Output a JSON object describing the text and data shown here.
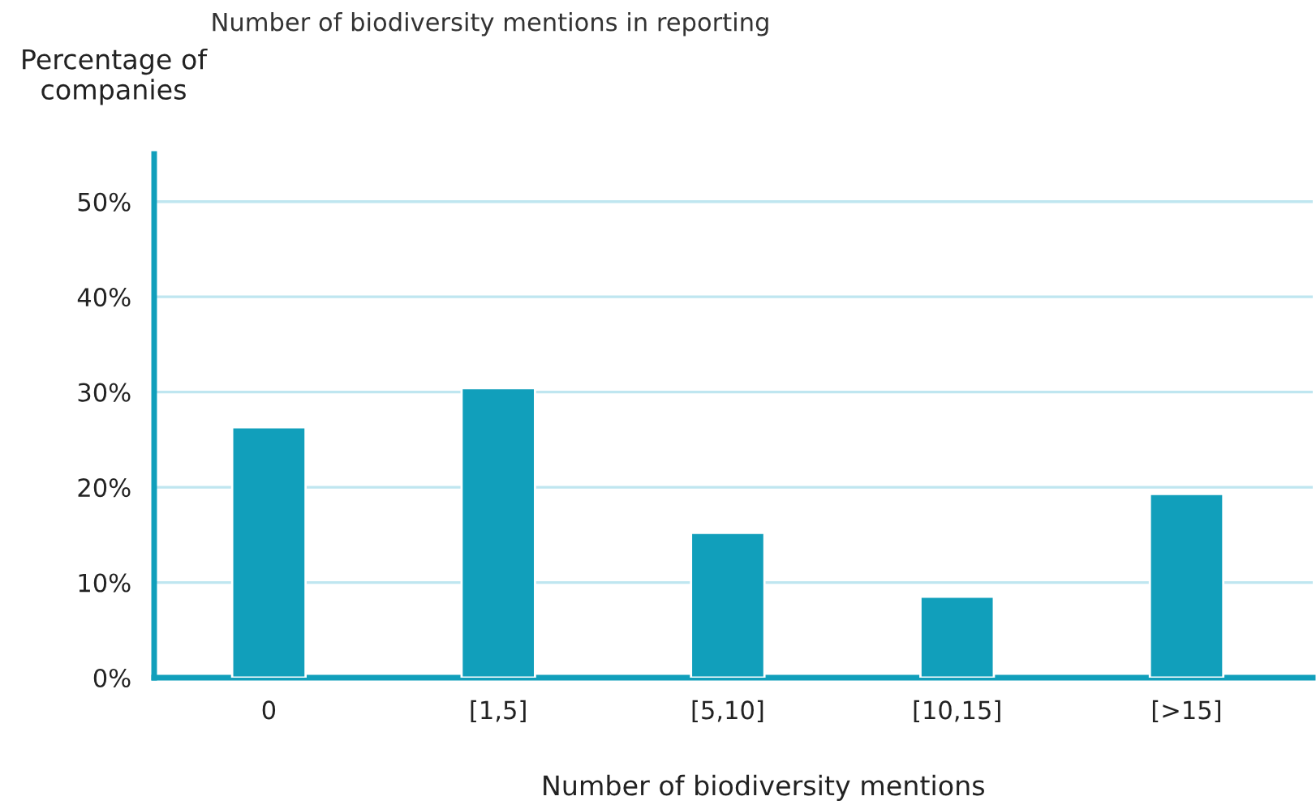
{
  "chart_data": {
    "type": "bar",
    "title": "Number of biodiversity mentions in reporting",
    "ylabel": "Percentage of\ncompanies",
    "xlabel": "Number of biodiversity mentions",
    "categories": [
      "0",
      "[1,5]",
      "[5,10]",
      "[10,15]",
      "[>15]"
    ],
    "values": [
      26.3,
      30.4,
      15.2,
      8.5,
      19.3
    ],
    "color": "#119fbb",
    "ylim": [
      0,
      55
    ],
    "yticks": [
      {
        "value": 0,
        "label": "0%"
      },
      {
        "value": 10,
        "label": "10%"
      },
      {
        "value": 20,
        "label": "20%"
      },
      {
        "value": 30,
        "label": "30%"
      },
      {
        "value": 40,
        "label": "40%"
      },
      {
        "value": 50,
        "label": "50%"
      }
    ],
    "grid": "y"
  }
}
